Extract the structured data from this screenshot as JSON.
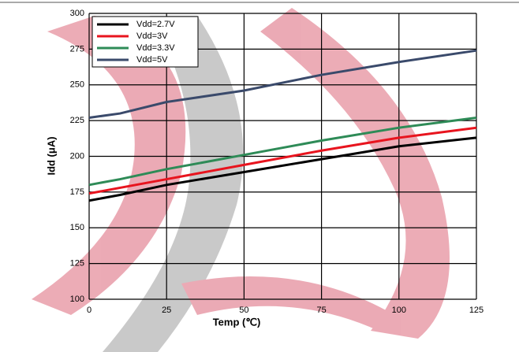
{
  "chart_data": {
    "type": "line",
    "x_label": "Temp (℃)",
    "y_label": "Idd (μA)",
    "x": [
      0,
      10,
      25,
      50,
      75,
      100,
      125
    ],
    "series": [
      {
        "name": "Vdd=2.7V",
        "color": "#000000",
        "values": [
          169,
          173,
          180,
          189,
          198,
          207,
          213
        ]
      },
      {
        "name": "Vdd=3V",
        "color": "#e8141e",
        "values": [
          174,
          178,
          184,
          194,
          204,
          213,
          220
        ]
      },
      {
        "name": "Vdd=3.3V",
        "color": "#2e8b57",
        "values": [
          180,
          184,
          191,
          201,
          211,
          220,
          227
        ]
      },
      {
        "name": "Vdd=5V",
        "color": "#3a4a6b",
        "values": [
          227,
          230,
          238,
          246,
          257,
          266,
          274
        ]
      }
    ],
    "xlim": [
      0,
      125
    ],
    "xticks": [
      0,
      25,
      50,
      75,
      100,
      125
    ],
    "ylim": [
      100,
      300
    ],
    "yticks": [
      100,
      125,
      150,
      175,
      200,
      225,
      250,
      275,
      300
    ],
    "grid": true,
    "legend": "upper-left"
  }
}
